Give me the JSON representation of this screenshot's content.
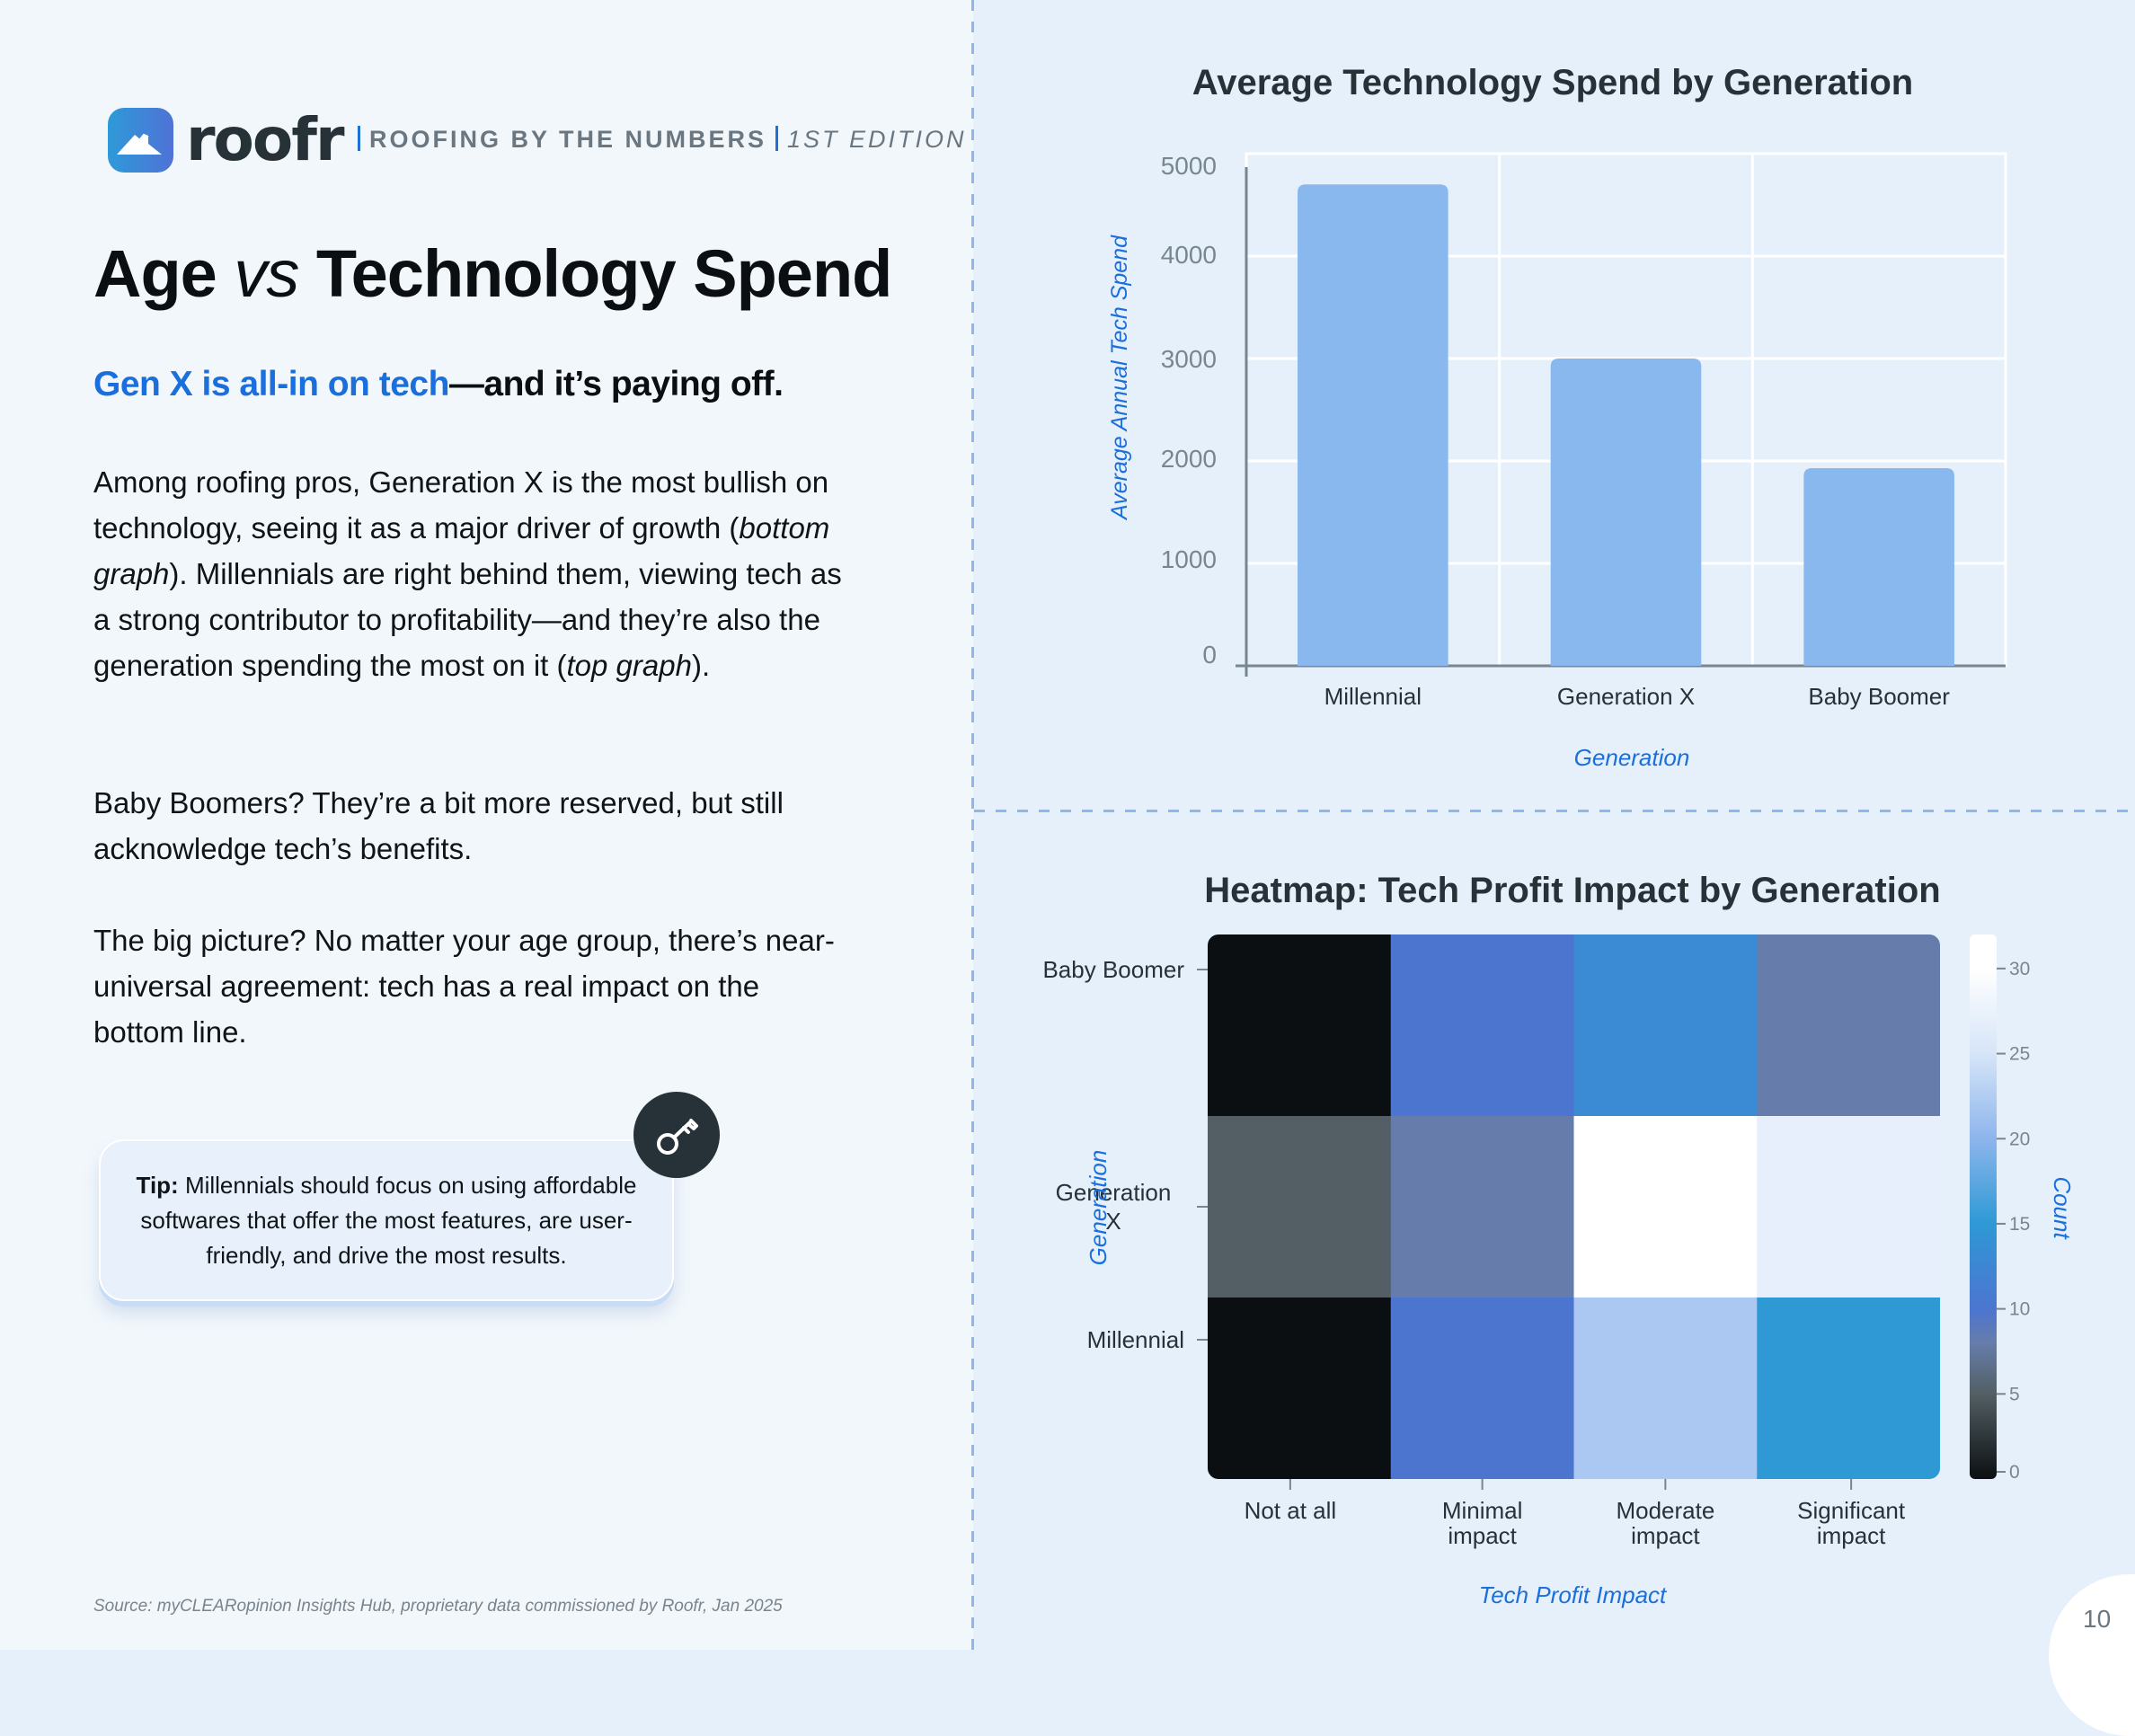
{
  "brand": {
    "name": "roofr",
    "tagline": "ROOFING BY THE NUMBERS",
    "edition": "1ST EDITION",
    "accent": "#1a6fdc",
    "logo_gradient": [
      "#2e9ad8",
      "#4f72d6"
    ]
  },
  "article": {
    "title_a": "Age ",
    "title_vs": "vs",
    "title_b": " Technology Spend",
    "subtitle_highlight": "Gen X is all-in on tech",
    "subtitle_rest": "—and it’s paying off.",
    "p1_a": "Among roofing pros, Generation X is the most bullish on technology, seeing it as a major driver of growth (",
    "p1_em1": "bottom graph",
    "p1_b": "). Millennials are right behind them, viewing tech as a strong contributor to profitability—and they’re also the generation spending the most on it (",
    "p1_em2": "top graph",
    "p1_c": ").",
    "p2": "Baby Boomers? They’re a bit more reserved, but still acknowledge tech’s benefits.",
    "p3": "The big picture? No matter your age group, there’s near-universal agreement: tech has a real impact on the bottom line."
  },
  "tip": {
    "label": "Tip:",
    "text": " Millennials should focus on using affordable softwares that offer the most features, are user-friendly, and drive the most results.",
    "icon": "key-icon"
  },
  "footer": {
    "source": "Source: myCLEARopinion Insights Hub, proprietary data commissioned by Roofr, Jan 2025",
    "page_number": "10"
  },
  "chart_data": [
    {
      "type": "bar",
      "title": "Average Technology Spend by Generation",
      "xlabel": "Generation",
      "ylabel": "Average Annual Tech Spend",
      "categories": [
        "Millennial",
        "Generation X",
        "Baby Boomer"
      ],
      "values": [
        4700,
        3000,
        1930
      ],
      "ylim": [
        0,
        5000
      ],
      "yticks": [
        0,
        1000,
        2000,
        3000,
        4000,
        5000
      ],
      "grid": true,
      "bar_color": "#89b8ef"
    },
    {
      "type": "heatmap",
      "title": "Heatmap: Tech Profit Impact by Generation",
      "xlabel": "Tech Profit Impact",
      "ylabel": "Generation",
      "x_categories": [
        "Not at all",
        "Minimal impact",
        "Moderate impact",
        "Significant impact"
      ],
      "x_tick_lines": [
        [
          "Not at all"
        ],
        [
          "Minimal",
          "impact"
        ],
        [
          "Moderate",
          "impact"
        ],
        [
          "Significant",
          "impact"
        ]
      ],
      "y_categories": [
        "Baby Boomer",
        "Generation X",
        "Millennial"
      ],
      "y_tick_lines": [
        [
          "Baby Boomer"
        ],
        [
          "Generation",
          "X"
        ],
        [
          "Millennial"
        ]
      ],
      "values": [
        [
          0,
          10,
          13,
          8
        ],
        [
          5,
          8,
          32,
          27
        ],
        [
          0,
          10,
          22,
          15
        ]
      ],
      "colorbar": {
        "label": "Count",
        "range": [
          0,
          32
        ],
        "ticks": [
          0,
          5,
          10,
          15,
          20,
          25,
          30
        ],
        "stops": [
          {
            "v": 0,
            "c": "#0b0f12"
          },
          {
            "v": 5,
            "c": "#535f64"
          },
          {
            "v": 8,
            "c": "#667dab"
          },
          {
            "v": 10,
            "c": "#4c75d0"
          },
          {
            "v": 13,
            "c": "#3b8ad4"
          },
          {
            "v": 15,
            "c": "#2e99d5"
          },
          {
            "v": 20,
            "c": "#8db5ec"
          },
          {
            "v": 25,
            "c": "#d6e5f8"
          },
          {
            "v": 30,
            "c": "#ffffff"
          },
          {
            "v": 32,
            "c": "#ffffff"
          }
        ]
      }
    }
  ]
}
